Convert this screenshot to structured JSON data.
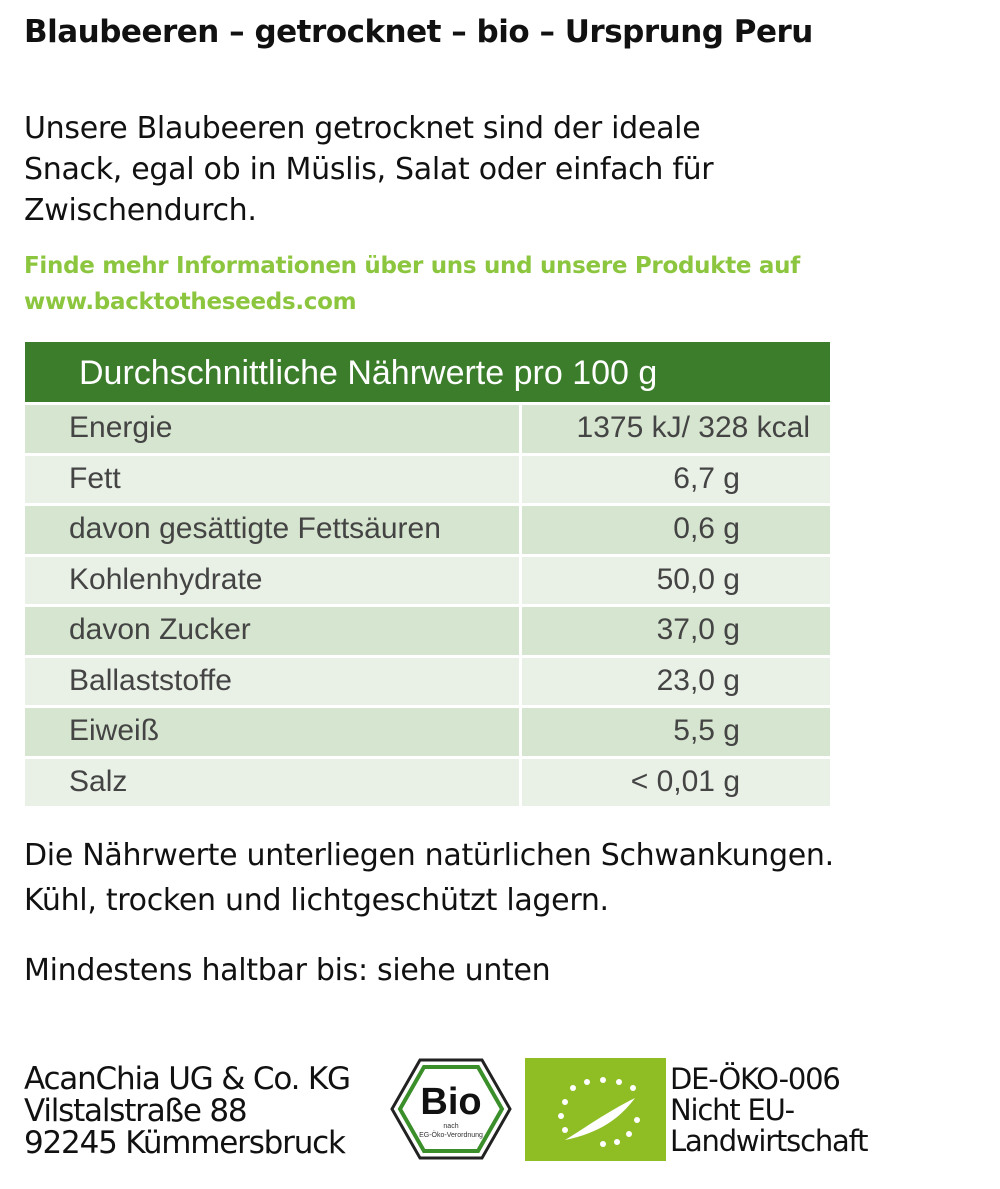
{
  "header": {
    "title": "Blaubeeren – getrocknet – bio – Ursprung Peru"
  },
  "description": [
    "Unsere Blaubeeren getrocknet sind der ideale",
    "Snack, egal ob in Müslis, Salat oder einfach für",
    "Zwischendurch."
  ],
  "info": [
    "Finde mehr Informationen über uns und unsere Produkte auf",
    "www.backtotheseeds.com"
  ],
  "table": {
    "header": "Durchschnittliche Nährwerte pro 100 g",
    "rows": [
      [
        "Energie",
        "1375 kJ/ 328 kcal"
      ],
      [
        "Fett",
        "6,7 g"
      ],
      [
        "davon gesättigte Fettsäuren",
        "0,6 g"
      ],
      [
        "Kohlenhydrate",
        "50,0 g"
      ],
      [
        "davon Zucker",
        "37,0 g"
      ],
      [
        "Ballaststoffe",
        "23,0 g"
      ],
      [
        "Eiweiß",
        "5,5 g"
      ],
      [
        "Salz",
        "< 0,01 g"
      ]
    ]
  },
  "notes": [
    "Die Nährwerte unterliegen natürlichen Schwankungen.",
    "Kühl, trocken und lichtgeschützt lagern.",
    "Mindestens haltbar bis:  siehe unten"
  ],
  "address": [
    "AcanChia UG & Co. KG",
    "Vilstalstraße 88",
    "92245 Kümmersbruck"
  ],
  "bio_logo": {
    "label": "Bio",
    "line1": "nach",
    "line2": "EG-Öko-Verordnung"
  },
  "eu": [
    "DE-ÖKO-006",
    "Nicht EU-",
    "Landwirtschaft"
  ]
}
